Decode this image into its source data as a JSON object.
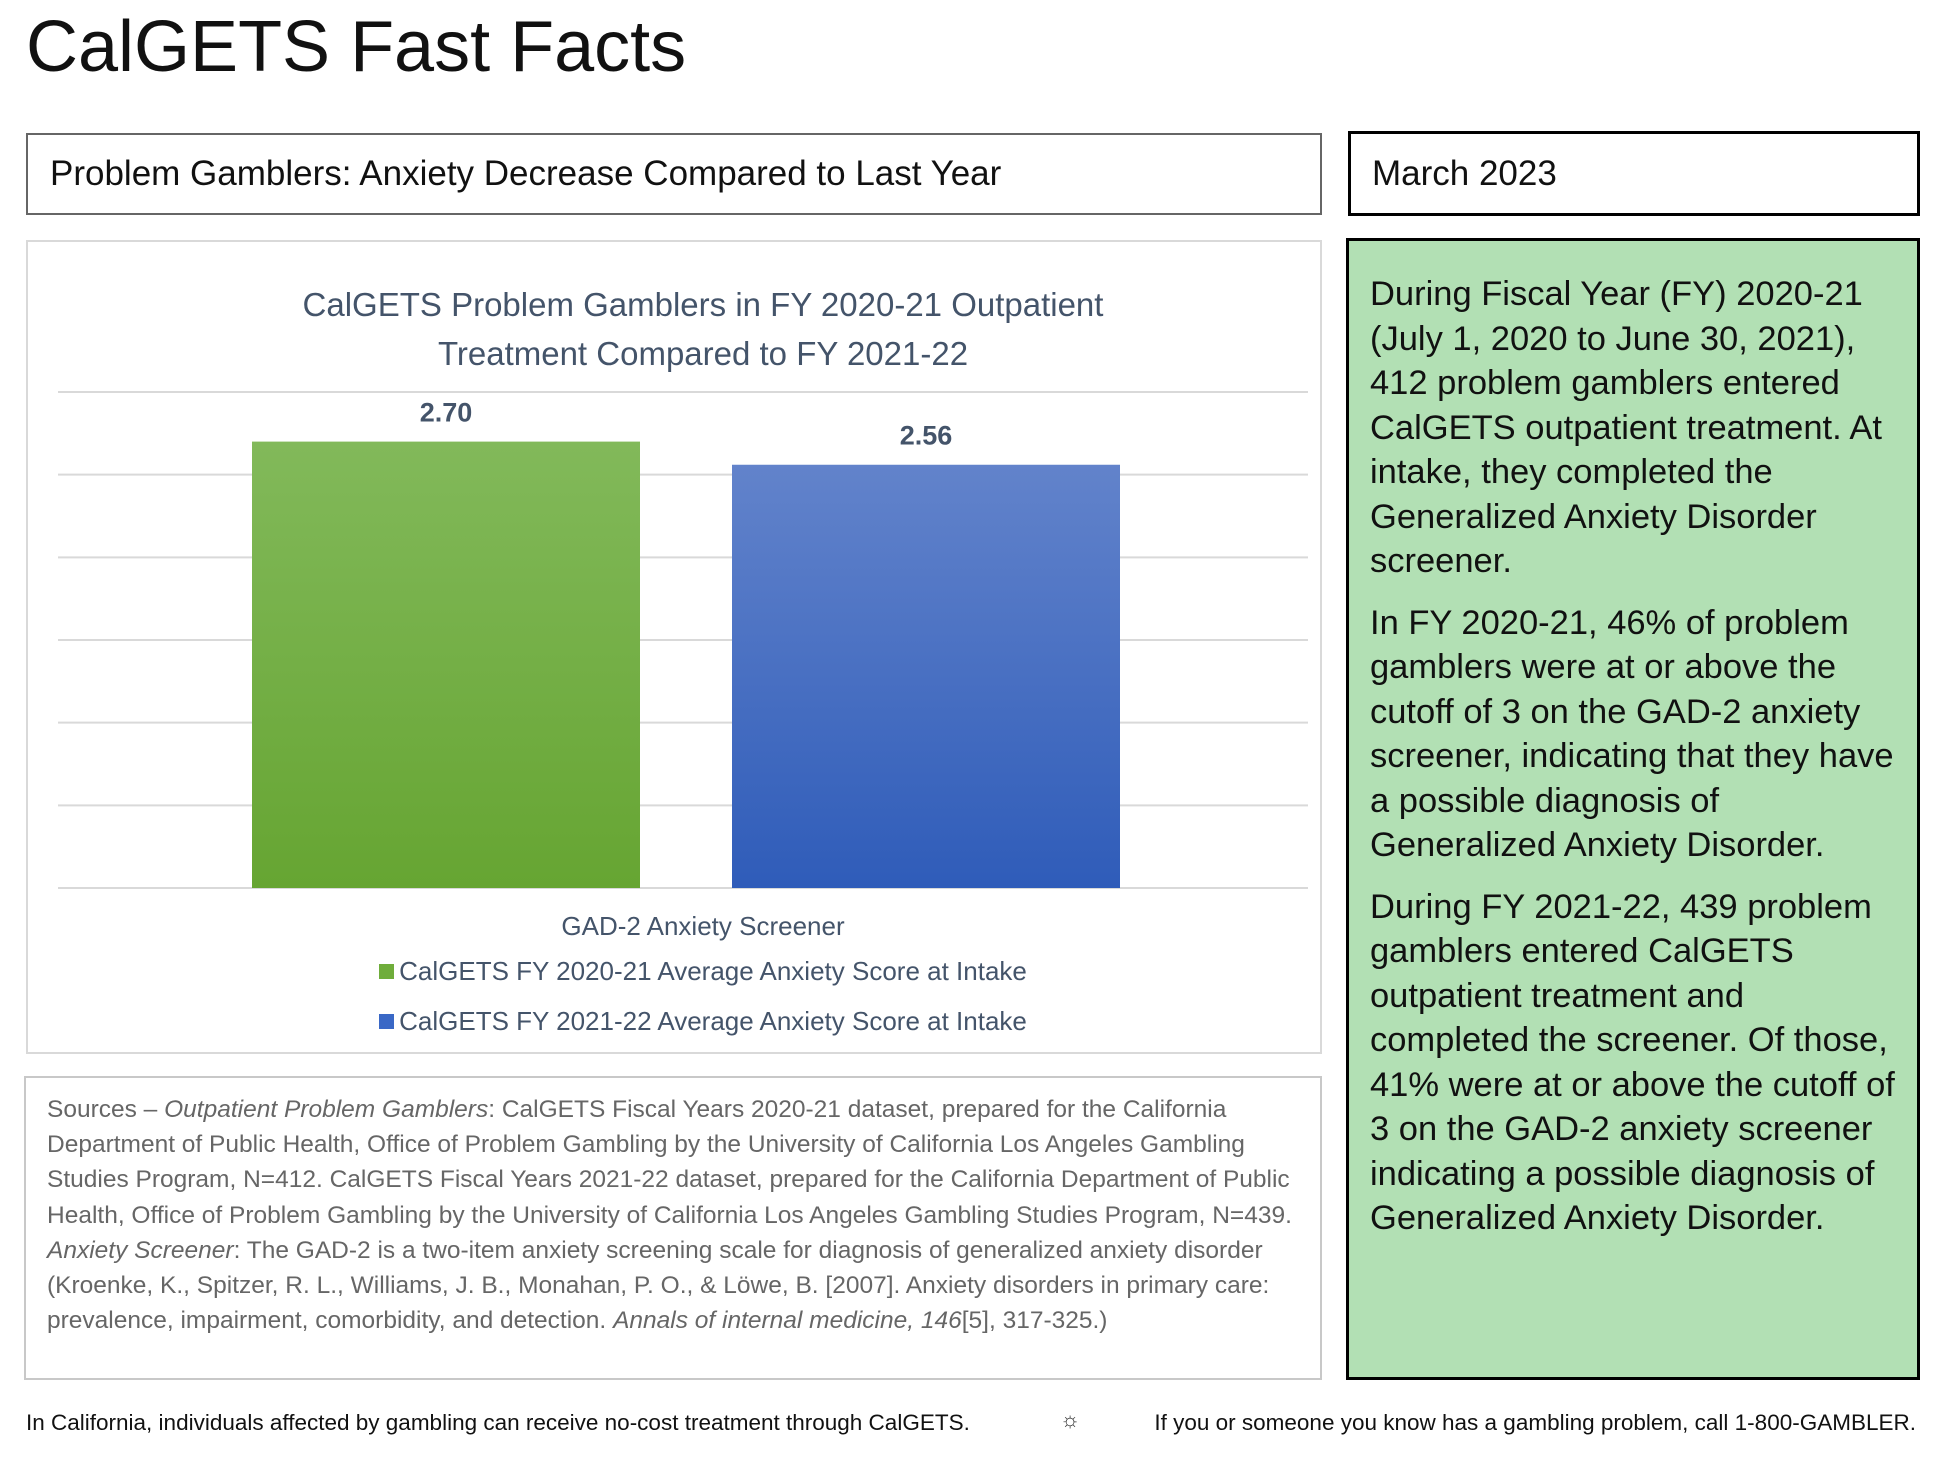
{
  "page": {
    "title": "CalGETS Fast Facts"
  },
  "headline": "Problem Gamblers: Anxiety Decrease Compared to Last Year",
  "date": "March 2023",
  "chart_data": {
    "type": "bar",
    "title_lines": [
      "CalGETS Problem Gamblers in FY 2020-21 Outpatient",
      "Treatment Compared to FY 2021-22"
    ],
    "categories": [
      "GAD-2 Anxiety Screener"
    ],
    "series": [
      {
        "name": "CalGETS FY 2020-21 Average Anxiety Score at Intake",
        "values": [
          2.7
        ],
        "label": "2.70",
        "color": "#6fad3b"
      },
      {
        "name": "CalGETS FY 2021-22 Average Anxiety Score at Intake",
        "values": [
          2.56
        ],
        "label": "2.56",
        "color": "#3a68c6"
      }
    ],
    "ylim": [
      0,
      3
    ],
    "grid": true,
    "legend_position": "bottom"
  },
  "sources": [
    {
      "text": "Sources – ",
      "italic": false
    },
    {
      "text": "Outpatient Problem Gamblers",
      "italic": true
    },
    {
      "text": ": CalGETS Fiscal Years 2020-21 dataset, prepared for the California Department of Public Health, Office of Problem Gambling by the University of California Los Angeles Gambling Studies Program, N=412.  CalGETS Fiscal Years 2021-22 dataset, prepared for the California Department of Public Health, Office of Problem Gambling by the University of California Los Angeles Gambling Studies Program, N=439.  ",
      "italic": false
    },
    {
      "text": "Anxiety Screener",
      "italic": true
    },
    {
      "text": ": The GAD-2 is a two-item anxiety screening scale for diagnosis of generalized anxiety disorder (Kroenke, K., Spitzer, R. L., Williams, J. B., Monahan, P. O., & Löwe, B. [2007]. Anxiety disorders in primary care: prevalence, impairment, comorbidity, and detection. ",
      "italic": false
    },
    {
      "text": "Annals of internal medicine, 146",
      "italic": true
    },
    {
      "text": "[5], 317-325.)",
      "italic": false
    }
  ],
  "summary": {
    "paragraphs": [
      "During Fiscal Year (FY) 2020-21 (July 1, 2020 to June 30, 2021), 412 problem gamblers entered CalGETS outpatient treatment. At intake, they completed the Generalized Anxiety Disorder screener.",
      "In FY 2020-21, 46% of problem gamblers were at or above the cutoff of 3 on the GAD-2 anxiety screener, indicating that they have a possible diagnosis of Generalized Anxiety Disorder.",
      "During FY 2021-22, 439 problem gamblers entered CalGETS outpatient treatment and completed the screener. Of those, 41% were at or above the cutoff of 3 on the GAD-2 anxiety screener indicating a possible diagnosis of Generalized Anxiety Disorder."
    ]
  },
  "footer": {
    "left": "In California, individuals affected by gambling can receive no-cost treatment through CalGETS.",
    "separator_icon": "sun-icon",
    "right": "If you or someone you know has a gambling problem, call 1-800-GAMBLER."
  }
}
